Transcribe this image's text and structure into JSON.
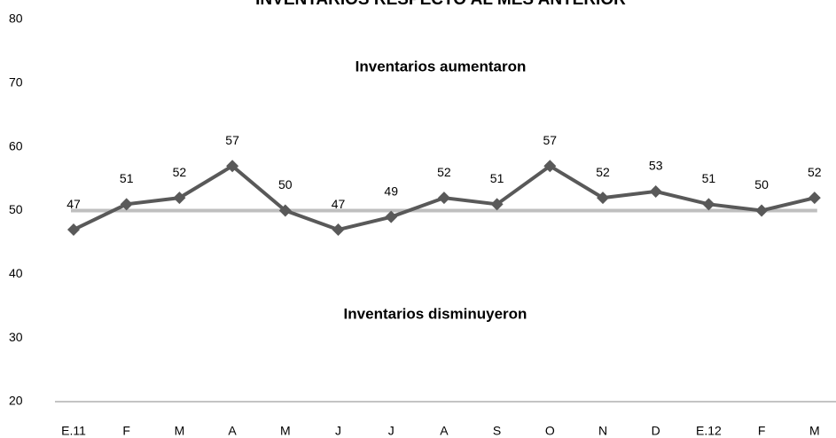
{
  "chart_data": {
    "type": "line",
    "title": "INVENTARIOS RESPECTO AL MES ANTERIOR",
    "annotations": [
      "Inventarios aumentaron",
      "Inventarios disminuyeron"
    ],
    "categories": [
      "E.11",
      "F",
      "M",
      "A",
      "M",
      "J",
      "J",
      "A",
      "S",
      "O",
      "N",
      "D",
      "E.12",
      "F",
      "M"
    ],
    "series": [
      {
        "name": "Inventarios",
        "color": "#595959",
        "values": [
          47,
          51,
          52,
          57,
          50,
          47,
          49,
          52,
          51,
          57,
          52,
          53,
          51,
          50,
          52
        ]
      }
    ],
    "reference_line": {
      "value": 50,
      "color": "#bfbfbf"
    },
    "ylim": [
      20,
      80
    ],
    "yticks": [
      20,
      30,
      40,
      50,
      60,
      70,
      80
    ],
    "grid": false
  }
}
